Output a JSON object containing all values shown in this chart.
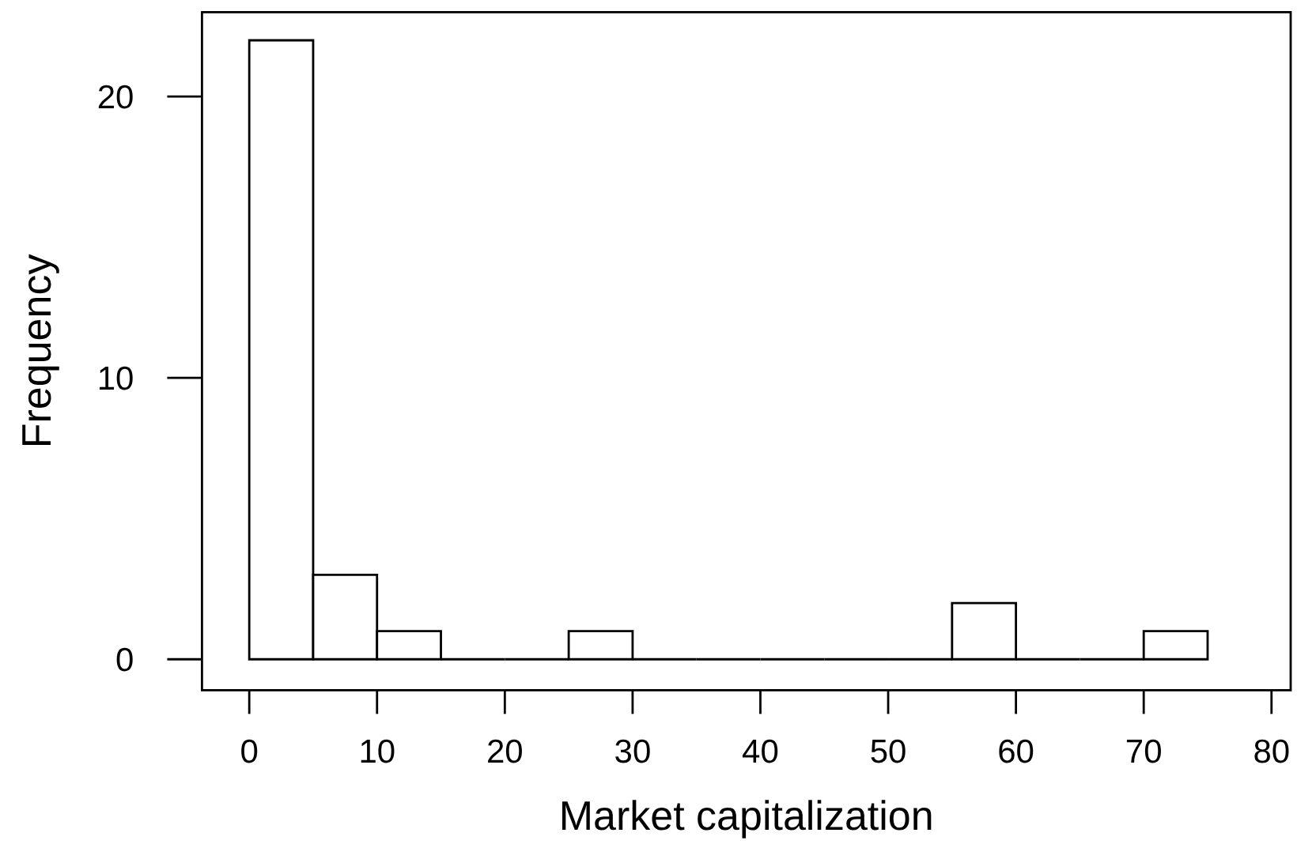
{
  "chart_data": {
    "type": "histogram",
    "xlabel": "Market capitalization",
    "ylabel": "Frequency",
    "bins": [
      0,
      5,
      10,
      15,
      20,
      25,
      30,
      35,
      40,
      45,
      50,
      55,
      60,
      65,
      70,
      75
    ],
    "values": [
      22,
      3,
      1,
      0,
      0,
      1,
      0,
      0,
      0,
      0,
      0,
      2,
      0,
      0,
      1
    ],
    "xlim": [
      -3.7,
      81.5
    ],
    "ylim": [
      -1.1,
      23
    ],
    "xticks": [
      0,
      10,
      20,
      30,
      40,
      50,
      60,
      70,
      80
    ],
    "yticks": [
      0,
      10,
      20
    ]
  }
}
